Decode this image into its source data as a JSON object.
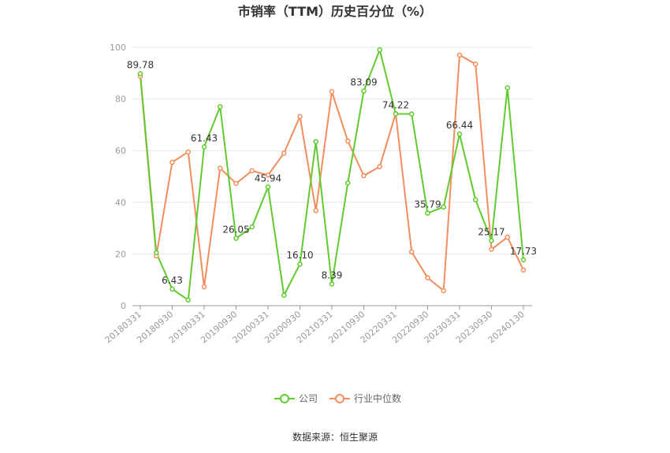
{
  "chart_data": {
    "type": "line",
    "title": "市销率（TTM）历史百分位（%）",
    "source": "数据来源：恒生聚源",
    "ylim": [
      0,
      100
    ],
    "yticks": [
      0,
      20,
      40,
      60,
      80,
      100
    ],
    "grid": true,
    "legend_position": "bottom",
    "x_tick_labels": [
      "20180331",
      "20180930",
      "20190331",
      "20190930",
      "20200331",
      "20200930",
      "20210331",
      "20210930",
      "20220331",
      "20220930",
      "20230331",
      "20230930",
      "20240130"
    ],
    "x": [
      "20180331",
      "20180630",
      "20180930",
      "20181231",
      "20190331",
      "20190630",
      "20190930",
      "20191231",
      "20200331",
      "20200630",
      "20200930",
      "20201231",
      "20210331",
      "20210630",
      "20210930",
      "20211231",
      "20220331",
      "20220630",
      "20220930",
      "20221231",
      "20230331",
      "20230630",
      "20230930",
      "20231231",
      "20240130"
    ],
    "series": [
      {
        "name": "公司",
        "color": "#5fcb2e",
        "values": [
          89.78,
          20.5,
          6.43,
          2.2,
          61.43,
          77.0,
          26.05,
          30.5,
          45.94,
          4.0,
          16.1,
          63.5,
          8.39,
          47.5,
          83.09,
          99.0,
          74.22,
          74.2,
          35.79,
          38.2,
          66.44,
          41.0,
          25.17,
          84.3,
          17.73
        ]
      },
      {
        "name": "行业中位数",
        "color": "#f28d5e",
        "values": [
          88.8,
          19.2,
          55.5,
          59.5,
          7.3,
          53.2,
          47.3,
          52.2,
          50.5,
          59.0,
          73.2,
          36.8,
          82.8,
          63.7,
          50.3,
          53.8,
          74.3,
          20.8,
          10.8,
          5.8,
          97.0,
          93.5,
          21.8,
          26.5,
          13.8
        ]
      }
    ],
    "data_labels": [
      {
        "index": 0,
        "text": "89.78"
      },
      {
        "index": 2,
        "text": "6.43"
      },
      {
        "index": 4,
        "text": "61.43"
      },
      {
        "index": 6,
        "text": "26.05"
      },
      {
        "index": 8,
        "text": "45.94"
      },
      {
        "index": 10,
        "text": "16.10"
      },
      {
        "index": 12,
        "text": "8.39"
      },
      {
        "index": 14,
        "text": "83.09"
      },
      {
        "index": 16,
        "text": "74.22"
      },
      {
        "index": 18,
        "text": "35.79"
      },
      {
        "index": 20,
        "text": "66.44"
      },
      {
        "index": 22,
        "text": "25.17"
      },
      {
        "index": 24,
        "text": "17.73"
      }
    ]
  }
}
